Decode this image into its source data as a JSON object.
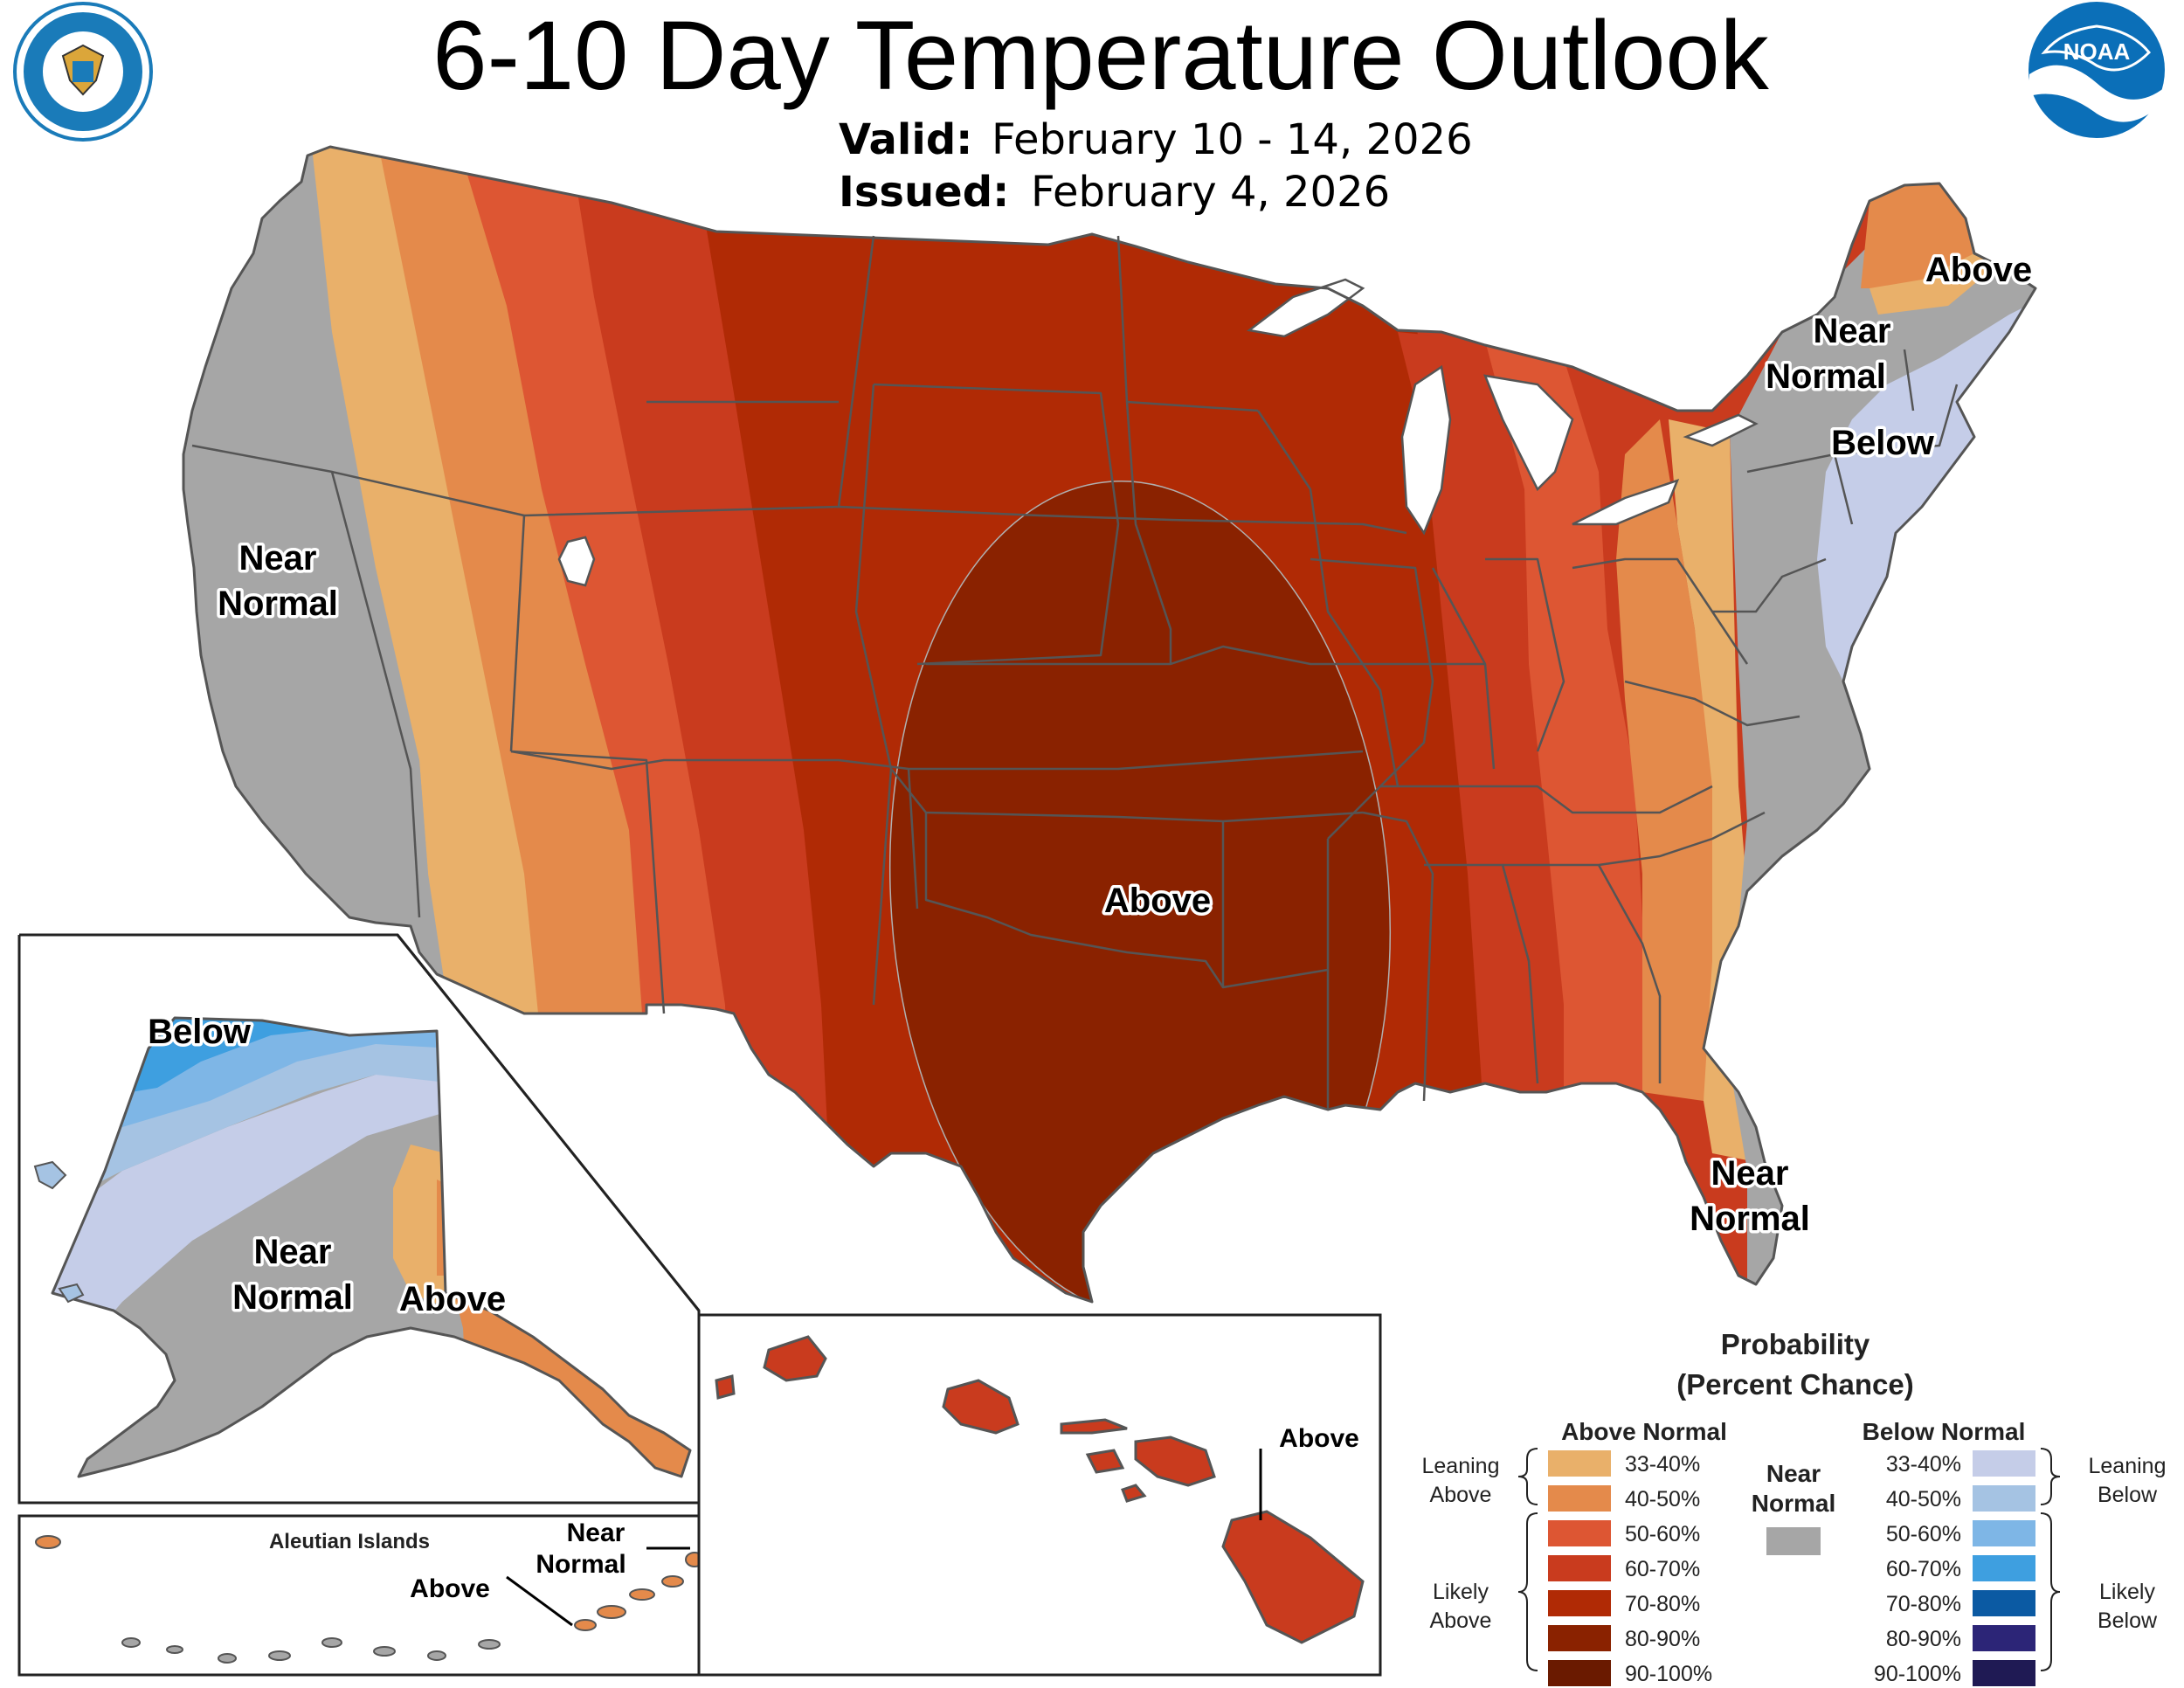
{
  "title": "6-10 Day Temperature Outlook",
  "valid_label": "Valid:",
  "valid_value": "February 10 - 14, 2026",
  "issued_label": "Issued:",
  "issued_value": "February 4, 2026",
  "logos": {
    "doc": "department-of-commerce-seal",
    "noaa_text": "NOAA"
  },
  "map_labels": {
    "west_near1": "Near",
    "west_near2": "Normal",
    "central_above": "Above",
    "maine_above": "Above",
    "ne_near1": "Near",
    "ne_near2": "Normal",
    "ne_below": "Below",
    "fl_near1": "Near",
    "fl_near2": "Normal",
    "ak_below": "Below",
    "ak_near1": "Near",
    "ak_near2": "Normal",
    "ak_above": "Above",
    "aleutian_title": "Aleutian Islands",
    "aleutian_above": "Above",
    "aleutian_near1": "Near",
    "aleutian_near2": "Normal",
    "hawaii_above": "Above"
  },
  "legend": {
    "title1": "Probability",
    "title2": "(Percent Chance)",
    "above_header": "Above Normal",
    "below_header": "Below Normal",
    "near1": "Near",
    "near2": "Normal",
    "near_color": "#a6a6a6",
    "leaning_above1": "Leaning",
    "leaning_above2": "Above",
    "likely_above1": "Likely",
    "likely_above2": "Above",
    "leaning_below1": "Leaning",
    "leaning_below2": "Below",
    "likely_below1": "Likely",
    "likely_below2": "Below",
    "above_items": [
      {
        "label": "33-40%",
        "color": "#e9b06a"
      },
      {
        "label": "40-50%",
        "color": "#e48a4b"
      },
      {
        "label": "50-60%",
        "color": "#dd5633"
      },
      {
        "label": "60-70%",
        "color": "#c93b1e"
      },
      {
        "label": "70-80%",
        "color": "#b02a05"
      },
      {
        "label": "80-90%",
        "color": "#8a2200"
      },
      {
        "label": "90-100%",
        "color": "#6a1a00"
      }
    ],
    "below_items": [
      {
        "label": "33-40%",
        "color": "#c5cde8"
      },
      {
        "label": "40-50%",
        "color": "#a5c3e3"
      },
      {
        "label": "50-60%",
        "color": "#7eb6e6"
      },
      {
        "label": "60-70%",
        "color": "#3e9fe0"
      },
      {
        "label": "70-80%",
        "color": "#0b5aa3"
      },
      {
        "label": "80-90%",
        "color": "#2c2577"
      },
      {
        "label": "90-100%",
        "color": "#1f1a54"
      }
    ]
  }
}
